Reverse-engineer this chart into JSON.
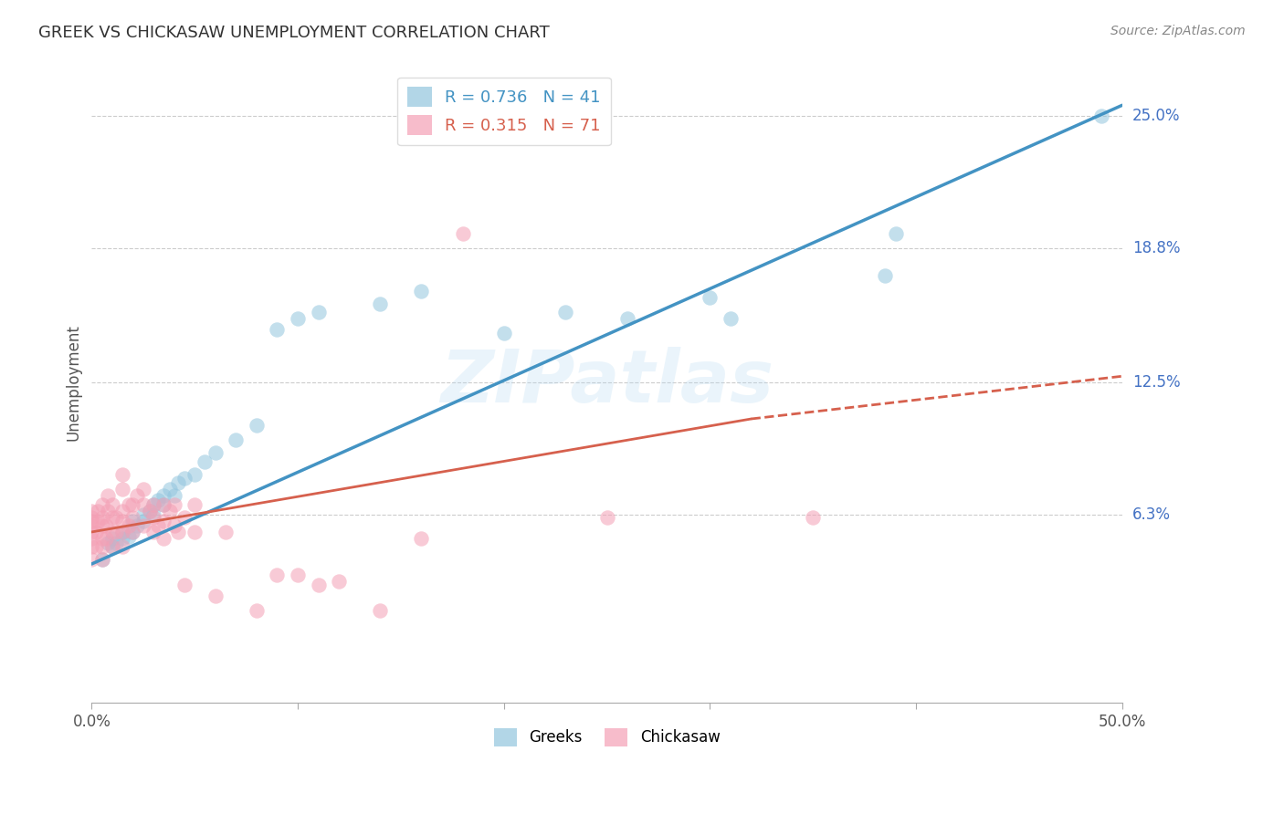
{
  "title": "GREEK VS CHICKASAW UNEMPLOYMENT CORRELATION CHART",
  "source": "Source: ZipAtlas.com",
  "ylabel": "Unemployment",
  "xlim": [
    0.0,
    0.5
  ],
  "ylim": [
    -0.025,
    0.275
  ],
  "ytick_positions": [
    0.063,
    0.125,
    0.188,
    0.25
  ],
  "ytick_labels": [
    "6.3%",
    "12.5%",
    "18.8%",
    "25.0%"
  ],
  "blue_color": "#92c5de",
  "pink_color": "#f4a0b5",
  "blue_line_color": "#4393c3",
  "pink_line_color": "#d6604d",
  "legend_R_blue": "0.736",
  "legend_N_blue": "41",
  "legend_R_pink": "0.315",
  "legend_N_pink": "71",
  "greek_points": [
    [
      0.005,
      0.042
    ],
    [
      0.008,
      0.05
    ],
    [
      0.01,
      0.048
    ],
    [
      0.01,
      0.052
    ],
    [
      0.012,
      0.05
    ],
    [
      0.015,
      0.052
    ],
    [
      0.015,
      0.055
    ],
    [
      0.018,
      0.053
    ],
    [
      0.02,
      0.055
    ],
    [
      0.02,
      0.06
    ],
    [
      0.022,
      0.058
    ],
    [
      0.025,
      0.06
    ],
    [
      0.025,
      0.063
    ],
    [
      0.028,
      0.065
    ],
    [
      0.03,
      0.063
    ],
    [
      0.03,
      0.068
    ],
    [
      0.032,
      0.07
    ],
    [
      0.035,
      0.068
    ],
    [
      0.035,
      0.072
    ],
    [
      0.038,
      0.075
    ],
    [
      0.04,
      0.072
    ],
    [
      0.042,
      0.078
    ],
    [
      0.045,
      0.08
    ],
    [
      0.05,
      0.082
    ],
    [
      0.055,
      0.088
    ],
    [
      0.06,
      0.092
    ],
    [
      0.07,
      0.098
    ],
    [
      0.08,
      0.105
    ],
    [
      0.09,
      0.15
    ],
    [
      0.1,
      0.155
    ],
    [
      0.11,
      0.158
    ],
    [
      0.14,
      0.162
    ],
    [
      0.16,
      0.168
    ],
    [
      0.2,
      0.148
    ],
    [
      0.23,
      0.158
    ],
    [
      0.26,
      0.155
    ],
    [
      0.3,
      0.165
    ],
    [
      0.31,
      0.155
    ],
    [
      0.385,
      0.175
    ],
    [
      0.39,
      0.195
    ],
    [
      0.49,
      0.25
    ]
  ],
  "chickasaw_points": [
    [
      0.0,
      0.042
    ],
    [
      0.0,
      0.048
    ],
    [
      0.0,
      0.052
    ],
    [
      0.0,
      0.055
    ],
    [
      0.0,
      0.058
    ],
    [
      0.0,
      0.06
    ],
    [
      0.0,
      0.062
    ],
    [
      0.0,
      0.065
    ],
    [
      0.002,
      0.048
    ],
    [
      0.002,
      0.055
    ],
    [
      0.003,
      0.06
    ],
    [
      0.003,
      0.065
    ],
    [
      0.005,
      0.042
    ],
    [
      0.005,
      0.048
    ],
    [
      0.005,
      0.052
    ],
    [
      0.005,
      0.058
    ],
    [
      0.005,
      0.062
    ],
    [
      0.005,
      0.068
    ],
    [
      0.007,
      0.052
    ],
    [
      0.007,
      0.058
    ],
    [
      0.008,
      0.065
    ],
    [
      0.008,
      0.072
    ],
    [
      0.01,
      0.048
    ],
    [
      0.01,
      0.055
    ],
    [
      0.01,
      0.062
    ],
    [
      0.01,
      0.068
    ],
    [
      0.012,
      0.055
    ],
    [
      0.012,
      0.062
    ],
    [
      0.015,
      0.048
    ],
    [
      0.015,
      0.055
    ],
    [
      0.015,
      0.06
    ],
    [
      0.015,
      0.065
    ],
    [
      0.015,
      0.075
    ],
    [
      0.015,
      0.082
    ],
    [
      0.018,
      0.058
    ],
    [
      0.018,
      0.068
    ],
    [
      0.02,
      0.055
    ],
    [
      0.02,
      0.062
    ],
    [
      0.02,
      0.068
    ],
    [
      0.022,
      0.072
    ],
    [
      0.025,
      0.058
    ],
    [
      0.025,
      0.068
    ],
    [
      0.025,
      0.075
    ],
    [
      0.028,
      0.065
    ],
    [
      0.03,
      0.055
    ],
    [
      0.03,
      0.062
    ],
    [
      0.03,
      0.068
    ],
    [
      0.032,
      0.058
    ],
    [
      0.035,
      0.052
    ],
    [
      0.035,
      0.06
    ],
    [
      0.035,
      0.068
    ],
    [
      0.038,
      0.065
    ],
    [
      0.04,
      0.058
    ],
    [
      0.04,
      0.068
    ],
    [
      0.042,
      0.055
    ],
    [
      0.045,
      0.03
    ],
    [
      0.045,
      0.062
    ],
    [
      0.05,
      0.055
    ],
    [
      0.05,
      0.068
    ],
    [
      0.06,
      0.025
    ],
    [
      0.065,
      0.055
    ],
    [
      0.08,
      0.018
    ],
    [
      0.09,
      0.035
    ],
    [
      0.1,
      0.035
    ],
    [
      0.11,
      0.03
    ],
    [
      0.12,
      0.032
    ],
    [
      0.14,
      0.018
    ],
    [
      0.16,
      0.052
    ],
    [
      0.18,
      0.195
    ],
    [
      0.25,
      0.062
    ],
    [
      0.35,
      0.062
    ]
  ],
  "blue_trendline": [
    [
      0.0,
      0.04
    ],
    [
      0.5,
      0.255
    ]
  ],
  "pink_trendline_solid": [
    [
      0.0,
      0.055
    ],
    [
      0.32,
      0.108
    ]
  ],
  "pink_trendline_dashed": [
    [
      0.32,
      0.108
    ],
    [
      0.5,
      0.128
    ]
  ],
  "watermark_text": "ZIPatlas",
  "background_color": "#ffffff",
  "grid_color": "#cccccc",
  "ytick_color": "#4472c4"
}
